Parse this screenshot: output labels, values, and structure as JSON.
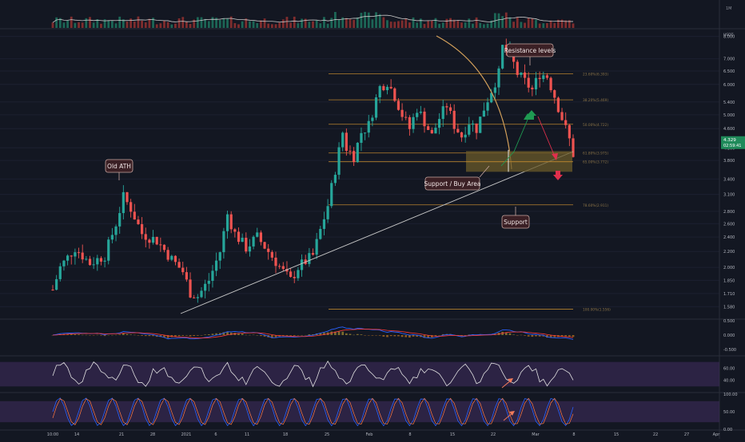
{
  "chart_data": {
    "type": "candlestick",
    "scale": "log",
    "volume_label": "1M",
    "price_axis": {
      "unit": "USDT",
      "ticks": [
        1.58,
        1.71,
        1.85,
        2.0,
        2.2,
        2.4,
        2.6,
        2.8,
        3.1,
        3.4,
        3.8,
        4.1,
        4.6,
        5.0,
        5.4,
        6.0,
        6.5,
        7.0,
        8.0
      ],
      "tick_labels": [
        "1.580",
        "1.710",
        "1.850",
        "2.000",
        "2.200",
        "2.400",
        "2.600",
        "2.800",
        "3.100",
        "3.400",
        "3.800",
        "4.100",
        "4.600",
        "5.000",
        "5.400",
        "6.000",
        "6.500",
        "7.000",
        "8.000"
      ],
      "current_price": "4.329",
      "countdown": "02:59:41"
    },
    "time_axis": {
      "labels": [
        "10:00",
        "14",
        "21",
        "28",
        "2021",
        "6",
        "11",
        "18",
        "25",
        "Feb",
        "8",
        "15",
        "22",
        "Mar",
        "8",
        "15",
        "22",
        "27",
        "Apr"
      ]
    },
    "candles": [],
    "fib_levels": [
      {
        "label": "23.60%(6.393)",
        "value": 6.393
      },
      {
        "label": "38.20%(5.469)",
        "value": 5.469
      },
      {
        "label": "50.00%(4.722)",
        "value": 4.722
      },
      {
        "label": "61.80%(3.975)",
        "value": 3.975
      },
      {
        "label": "65.00%(3.772)",
        "value": 3.772
      },
      {
        "label": "78.60%(2.911)",
        "value": 2.911
      },
      {
        "label": "100.00%(1.556)",
        "value": 1.556
      }
    ],
    "annotations": [
      {
        "id": "old-ath",
        "text": "Old ATH"
      },
      {
        "id": "resistance",
        "text": "Resistance levels"
      },
      {
        "id": "support-buy",
        "text": "Support / Buy Area"
      },
      {
        "id": "support",
        "text": "Support"
      }
    ],
    "macd": {
      "ticks": [
        "0.500",
        "0.000",
        "-0.500"
      ],
      "macd_line": [],
      "signal_line": [],
      "histogram": []
    },
    "rsi": {
      "ticks": [
        "60.00",
        "40.00"
      ],
      "values": []
    },
    "stoch": {
      "ticks": [
        "100.00",
        "50.00",
        "0.00"
      ],
      "values": []
    },
    "colors": {
      "background": "#131722",
      "up": "#26a69a",
      "down": "#ef5350",
      "fib": "#b7832f",
      "accent": "#d4a15b",
      "annotation": "#3a1f24",
      "highlight": "#6b5b2a",
      "arrow_up": "#1f9a52",
      "arrow_down": "#e02f4c",
      "rsi_band": "#3d2b5c"
    }
  }
}
